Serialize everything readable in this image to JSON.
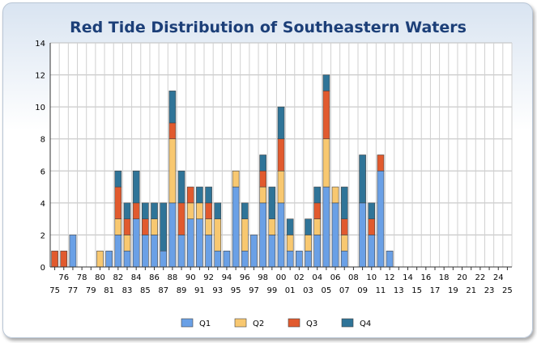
{
  "chart_data": {
    "type": "bar",
    "stacked": true,
    "title": "Red Tide Distribution of Southeastern Waters",
    "xlabel": "",
    "ylabel": "",
    "ylim": [
      0,
      14
    ],
    "yticks": [
      0,
      2,
      4,
      6,
      8,
      10,
      12,
      14
    ],
    "grid": true,
    "legend_position": "bottom",
    "categories": [
      "75",
      "76",
      "77",
      "78",
      "79",
      "80",
      "81",
      "82",
      "83",
      "84",
      "85",
      "86",
      "87",
      "88",
      "89",
      "90",
      "91",
      "92",
      "93",
      "94",
      "95",
      "96",
      "97",
      "98",
      "99",
      "00",
      "01",
      "02",
      "03",
      "04",
      "05",
      "06",
      "07",
      "08",
      "09",
      "10",
      "11",
      "12",
      "13",
      "14",
      "15",
      "16",
      "17",
      "18",
      "19",
      "20",
      "21",
      "22",
      "23",
      "24",
      "25"
    ],
    "series": [
      {
        "name": "Q1",
        "color": "#6aa0e6",
        "values": [
          0,
          0,
          2,
          0,
          0,
          0,
          1,
          2,
          1,
          3,
          2,
          2,
          1,
          4,
          2,
          3,
          3,
          2,
          1,
          1,
          5,
          1,
          2,
          4,
          2,
          4,
          1,
          1,
          1,
          2,
          5,
          4,
          1,
          0,
          4,
          2,
          6,
          1,
          0,
          0,
          0,
          0,
          0,
          0,
          0,
          0,
          0,
          0,
          0,
          0,
          0
        ]
      },
      {
        "name": "Q2",
        "color": "#f8c870",
        "values": [
          0,
          0,
          0,
          0,
          0,
          1,
          0,
          1,
          1,
          0,
          0,
          1,
          0,
          4,
          0,
          1,
          1,
          1,
          2,
          0,
          1,
          2,
          0,
          1,
          1,
          2,
          1,
          0,
          1,
          1,
          3,
          1,
          1,
          0,
          0,
          0,
          0,
          0,
          0,
          0,
          0,
          0,
          0,
          0,
          0,
          0,
          0,
          0,
          0,
          0,
          0
        ]
      },
      {
        "name": "Q3",
        "color": "#e15a2e",
        "values": [
          1,
          1,
          0,
          0,
          0,
          0,
          0,
          2,
          1,
          1,
          1,
          0,
          0,
          1,
          2,
          1,
          0,
          1,
          0,
          0,
          0,
          0,
          0,
          1,
          0,
          2,
          0,
          0,
          0,
          1,
          3,
          0,
          1,
          0,
          0,
          1,
          1,
          0,
          0,
          0,
          0,
          0,
          0,
          0,
          0,
          0,
          0,
          0,
          0,
          0,
          0
        ]
      },
      {
        "name": "Q4",
        "color": "#2f7498",
        "values": [
          0,
          0,
          0,
          0,
          0,
          0,
          0,
          1,
          1,
          2,
          1,
          1,
          3,
          2,
          2,
          0,
          1,
          1,
          1,
          0,
          0,
          1,
          0,
          1,
          2,
          2,
          1,
          0,
          1,
          1,
          1,
          0,
          2,
          0,
          3,
          1,
          0,
          0,
          0,
          0,
          0,
          0,
          0,
          0,
          0,
          0,
          0,
          0,
          0,
          0,
          0
        ]
      }
    ]
  }
}
